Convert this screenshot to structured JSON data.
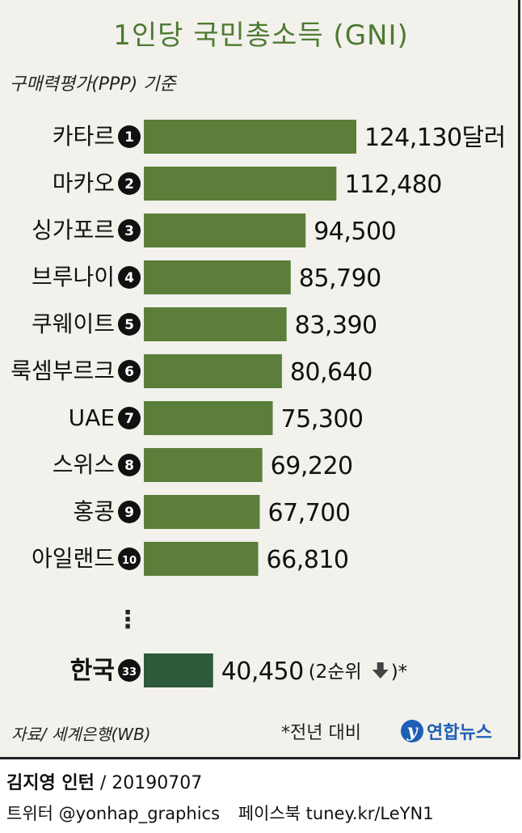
{
  "header": {
    "title": "1인당 국민총소득 (GNI)",
    "subtitle": "구매력평가(PPP) 기준"
  },
  "chart_data": {
    "type": "bar",
    "orientation": "horizontal",
    "title": "1인당 국민총소득 (GNI)",
    "subtitle": "구매력평가(PPP) 기준",
    "unit": "달러",
    "categories": [
      "카타르",
      "마카오",
      "싱가포르",
      "브루나이",
      "쿠웨이트",
      "룩셈부르크",
      "UAE",
      "스위스",
      "홍콩",
      "아일랜드"
    ],
    "ranks": [
      1,
      2,
      3,
      4,
      5,
      6,
      7,
      8,
      9,
      10
    ],
    "values": [
      124130,
      112480,
      94500,
      85790,
      83390,
      80640,
      75300,
      69220,
      67700,
      66810
    ],
    "value_labels": [
      "124,130달러",
      "112,480",
      "94,500",
      "85,790",
      "83,390",
      "80,640",
      "75,300",
      "69,220",
      "67,700",
      "66,810"
    ],
    "ellipsis": "⋮",
    "highlight": {
      "category": "한국",
      "rank": 33,
      "value": 40450,
      "value_label": "40,450",
      "note": "(2순위",
      "note_tail": ")*",
      "change_icon": "down-arrow-icon"
    },
    "colors": {
      "bar": "#5b7f3a",
      "highlight_bar": "#2c5a3a",
      "title": "#4e7a31"
    }
  },
  "footer": {
    "source": "자료/ 세계은행(WB)",
    "note": "*전년 대비",
    "logo_text": "연합뉴스"
  },
  "credit": {
    "author": "김지영 인턴",
    "date": "/ 20190707"
  },
  "social": {
    "twitter": "트위터 @yonhap_graphics",
    "facebook": "페이스북 tuney.kr/LeYN1"
  }
}
